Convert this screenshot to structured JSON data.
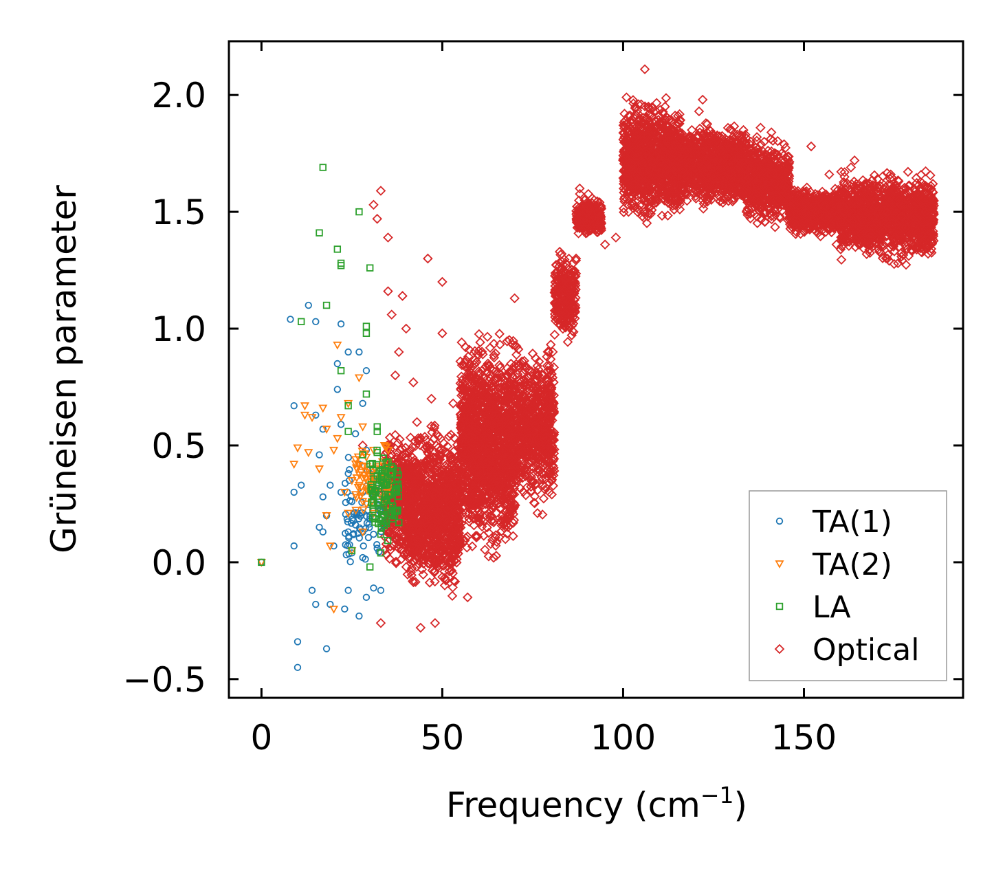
{
  "chart_data": {
    "type": "scatter",
    "title": "",
    "xlabel": "Frequency (cm",
    "xlabel_sup": "−1",
    "xlabel_close": ")",
    "ylabel": "Grüneisen parameter",
    "xlim": [
      -9,
      194
    ],
    "ylim": [
      -0.58,
      2.23
    ],
    "xticks": [
      0,
      50,
      100,
      150
    ],
    "xtick_labels": [
      "0",
      "50",
      "100",
      "150"
    ],
    "yticks": [
      -0.5,
      0.0,
      0.5,
      1.0,
      1.5,
      2.0
    ],
    "ytick_labels": [
      "−0.5",
      "0.0",
      "0.5",
      "1.0",
      "1.5",
      "2.0"
    ],
    "legend_position": "lower-right",
    "series": [
      {
        "name": "TA(1)",
        "marker": "circle",
        "color": "#1f77b4",
        "points": [
          [
            0,
            0
          ],
          [
            8,
            1.04
          ],
          [
            9,
            0.67
          ],
          [
            9,
            0.3
          ],
          [
            9,
            0.07
          ],
          [
            10,
            -0.34
          ],
          [
            10,
            -0.45
          ],
          [
            11,
            0.33
          ],
          [
            13,
            1.1
          ],
          [
            14,
            -0.12
          ],
          [
            15,
            1.03
          ],
          [
            15,
            0.63
          ],
          [
            15,
            -0.18
          ],
          [
            16,
            0.46
          ],
          [
            16,
            0.15
          ],
          [
            17,
            0.57
          ],
          [
            17,
            0.28
          ],
          [
            17,
            0.13
          ],
          [
            18,
            0.2
          ],
          [
            18,
            -0.37
          ],
          [
            19,
            0.33
          ],
          [
            19,
            -0.18
          ],
          [
            20,
            0.07
          ],
          [
            21,
            0.85
          ],
          [
            21,
            0.74
          ],
          [
            22,
            1.02
          ],
          [
            22,
            0.59
          ],
          [
            22,
            0.3
          ],
          [
            23,
            -0.2
          ],
          [
            24,
            0.9
          ],
          [
            24,
            0.38
          ],
          [
            24,
            0.13
          ],
          [
            24,
            -0.12
          ],
          [
            25,
            0.26
          ],
          [
            25,
            0.04
          ],
          [
            26,
            0.55
          ],
          [
            26,
            0.16
          ],
          [
            27,
            0.9
          ],
          [
            27,
            0.42
          ],
          [
            27,
            -0.23
          ],
          [
            28,
            0.68
          ],
          [
            28,
            0.3
          ],
          [
            28,
            0.02
          ],
          [
            29,
            0.82
          ],
          [
            29,
            0.48
          ],
          [
            29,
            -0.15
          ],
          [
            30,
            0.2
          ],
          [
            30,
            0.38
          ],
          [
            31,
            0.12
          ],
          [
            31,
            -0.11
          ],
          [
            32,
            0.06
          ],
          [
            32,
            0.25
          ],
          [
            33,
            -0.12
          ],
          [
            33,
            0.18
          ]
        ]
      },
      {
        "name": "TA(2)",
        "marker": "triangle-down",
        "color": "#ff7f0e",
        "points": [
          [
            0,
            0
          ],
          [
            9,
            0.42
          ],
          [
            10,
            0.49
          ],
          [
            12,
            0.67
          ],
          [
            12,
            0.63
          ],
          [
            13,
            0.47
          ],
          [
            14,
            0.62
          ],
          [
            16,
            0.4
          ],
          [
            17,
            0.66
          ],
          [
            18,
            0.57
          ],
          [
            18,
            0.2
          ],
          [
            19,
            0.07
          ],
          [
            20,
            0.48
          ],
          [
            20,
            -0.2
          ],
          [
            21,
            0.93
          ],
          [
            21,
            0.53
          ],
          [
            22,
            0.62
          ],
          [
            23,
            0.3
          ],
          [
            24,
            0.68
          ],
          [
            24,
            0.21
          ],
          [
            25,
            0.35
          ],
          [
            25,
            0.05
          ],
          [
            26,
            0.44
          ],
          [
            27,
            0.79
          ],
          [
            27,
            0.33
          ],
          [
            28,
            0.58
          ],
          [
            28,
            0.13
          ],
          [
            29,
            0.45
          ],
          [
            29,
            0.25
          ],
          [
            30,
            0.37
          ],
          [
            31,
            0.48
          ],
          [
            31,
            0.21
          ],
          [
            32,
            0.41
          ],
          [
            33,
            0.28
          ],
          [
            33,
            0.36
          ],
          [
            34,
            0.5
          ],
          [
            35,
            0.24
          ]
        ]
      },
      {
        "name": "LA",
        "marker": "square",
        "color": "#2ca02c",
        "points": [
          [
            0,
            0
          ],
          [
            11,
            1.03
          ],
          [
            16,
            1.41
          ],
          [
            17,
            1.69
          ],
          [
            18,
            1.1
          ],
          [
            21,
            1.34
          ],
          [
            22,
            1.28
          ],
          [
            22,
            1.27
          ],
          [
            22,
            0.82
          ],
          [
            24,
            0.67
          ],
          [
            24,
            0.56
          ],
          [
            25,
            0.05
          ],
          [
            27,
            1.5
          ],
          [
            28,
            0.46
          ],
          [
            29,
            1.01
          ],
          [
            29,
            0.72
          ],
          [
            29,
            0.98
          ],
          [
            30,
            1.26
          ],
          [
            30,
            0.42
          ],
          [
            30,
            -0.02
          ],
          [
            31,
            0.29
          ],
          [
            32,
            0.56
          ],
          [
            32,
            0.58
          ],
          [
            32,
            0.47
          ],
          [
            33,
            0.12
          ],
          [
            33,
            0.39
          ],
          [
            33,
            0.04
          ],
          [
            34,
            0.33
          ],
          [
            34,
            0.26
          ],
          [
            35,
            0.43
          ],
          [
            35,
            0.36
          ],
          [
            35,
            0.29
          ],
          [
            36,
            0.41
          ],
          [
            36,
            0.35
          ],
          [
            37,
            0.33
          ],
          [
            38,
            0.17
          ]
        ]
      },
      {
        "name": "Optical",
        "marker": "diamond",
        "color": "#d62728",
        "points": [
          [
            28,
            0.5
          ],
          [
            31,
            1.53
          ],
          [
            32,
            1.47
          ],
          [
            33,
            1.59
          ],
          [
            33,
            -0.26
          ],
          [
            35,
            1.39
          ],
          [
            35,
            1.16
          ],
          [
            36,
            1.06
          ],
          [
            37,
            0.8
          ],
          [
            38,
            0.9
          ],
          [
            39,
            1.14
          ],
          [
            40,
            1.0
          ],
          [
            42,
            0.77
          ],
          [
            43,
            0.6
          ],
          [
            44,
            -0.28
          ],
          [
            46,
            1.3
          ],
          [
            47,
            0.7
          ],
          [
            48,
            -0.26
          ],
          [
            50,
            1.2
          ],
          [
            50,
            0.98
          ],
          [
            51,
            0.05
          ],
          [
            53,
            0.68
          ],
          [
            55,
            0.86
          ],
          [
            56,
            0.74
          ],
          [
            57,
            -0.15
          ],
          [
            58,
            0.81
          ],
          [
            60,
            0.64
          ],
          [
            61,
            0.34
          ],
          [
            63,
            0.57
          ],
          [
            65,
            0.48
          ],
          [
            66,
            0.62
          ],
          [
            67,
            0.44
          ],
          [
            68,
            0.72
          ],
          [
            69,
            0.85
          ],
          [
            70,
            1.13
          ],
          [
            71,
            0.55
          ],
          [
            72,
            0.61
          ],
          [
            73,
            0.4
          ],
          [
            75,
            0.34
          ],
          [
            76,
            0.62
          ],
          [
            77,
            0.7
          ],
          [
            78,
            0.68
          ],
          [
            80,
            0.74
          ],
          [
            82,
            1.05
          ],
          [
            83,
            1.32
          ],
          [
            84,
            1.16
          ],
          [
            85,
            1.22
          ],
          [
            86,
            0.99
          ],
          [
            87,
            1.3
          ],
          [
            88,
            1.6
          ],
          [
            89,
            1.48
          ],
          [
            90,
            1.52
          ],
          [
            91,
            1.42
          ],
          [
            92,
            1.55
          ],
          [
            93,
            1.5
          ],
          [
            95,
            1.36
          ],
          [
            98,
            1.39
          ],
          [
            100,
            1.72
          ],
          [
            101,
            1.79
          ],
          [
            102,
            1.75
          ],
          [
            103,
            1.67
          ],
          [
            104,
            1.83
          ],
          [
            105,
            1.96
          ],
          [
            106,
            2.11
          ],
          [
            107,
            1.95
          ],
          [
            108,
            1.82
          ],
          [
            109,
            1.74
          ],
          [
            110,
            1.91
          ],
          [
            111,
            1.86
          ],
          [
            112,
            1.68
          ],
          [
            113,
            1.57
          ],
          [
            115,
            1.59
          ],
          [
            117,
            1.71
          ],
          [
            118,
            1.78
          ],
          [
            119,
            1.85
          ],
          [
            121,
            1.93
          ],
          [
            122,
            1.98
          ],
          [
            124,
            1.74
          ],
          [
            125,
            1.64
          ],
          [
            127,
            1.76
          ],
          [
            129,
            1.73
          ],
          [
            130,
            1.85
          ],
          [
            131,
            1.67
          ],
          [
            133,
            1.57
          ],
          [
            135,
            1.79
          ],
          [
            137,
            1.82
          ],
          [
            138,
            1.86
          ],
          [
            140,
            1.71
          ],
          [
            141,
            1.84
          ],
          [
            142,
            1.62
          ],
          [
            144,
            1.53
          ],
          [
            146,
            1.5
          ],
          [
            148,
            1.49
          ],
          [
            150,
            1.44
          ],
          [
            152,
            1.78
          ],
          [
            153,
            1.53
          ],
          [
            155,
            1.42
          ],
          [
            157,
            1.66
          ],
          [
            159,
            1.36
          ],
          [
            161,
            1.5
          ],
          [
            163,
            1.69
          ],
          [
            164,
            1.72
          ],
          [
            166,
            1.58
          ],
          [
            168,
            1.47
          ],
          [
            170,
            1.53
          ],
          [
            172,
            1.6
          ],
          [
            174,
            1.66
          ],
          [
            175,
            1.37
          ],
          [
            176,
            1.28
          ],
          [
            177,
            1.48
          ],
          [
            179,
            1.61
          ],
          [
            181,
            1.42
          ],
          [
            183,
            1.55
          ],
          [
            184,
            1.49
          ],
          [
            185,
            1.33
          ]
        ]
      }
    ],
    "dense_regions": [
      {
        "series": "Optical",
        "x": [
          34,
          40
        ],
        "y_center": 0.28,
        "y_spread": 0.33,
        "count": 320
      },
      {
        "series": "Optical",
        "x": [
          40,
          55
        ],
        "y_center": 0.22,
        "y_spread": 0.42,
        "count": 1100
      },
      {
        "series": "Optical",
        "x": [
          55,
          70
        ],
        "y_center": 0.5,
        "y_spread": 0.55,
        "count": 1400
      },
      {
        "series": "Optical",
        "x": [
          70,
          81
        ],
        "y_center": 0.58,
        "y_spread": 0.4,
        "count": 700
      },
      {
        "series": "Optical",
        "x": [
          81,
          87
        ],
        "y_center": 1.15,
        "y_spread": 0.25,
        "count": 260
      },
      {
        "series": "Optical",
        "x": [
          87,
          94
        ],
        "y_center": 1.48,
        "y_spread": 0.1,
        "count": 260
      },
      {
        "series": "Optical",
        "x": [
          100,
          116
        ],
        "y_center": 1.72,
        "y_spread": 0.3,
        "count": 1100
      },
      {
        "series": "Optical",
        "x": [
          116,
          134
        ],
        "y_center": 1.7,
        "y_spread": 0.2,
        "count": 1000
      },
      {
        "series": "Optical",
        "x": [
          134,
          146
        ],
        "y_center": 1.63,
        "y_spread": 0.22,
        "count": 600
      },
      {
        "series": "Optical",
        "x": [
          146,
          160
        ],
        "y_center": 1.5,
        "y_spread": 0.12,
        "count": 600
      },
      {
        "series": "Optical",
        "x": [
          160,
          186
        ],
        "y_center": 1.48,
        "y_spread": 0.22,
        "count": 1300
      },
      {
        "series": "TA(1)",
        "x": [
          23,
          34
        ],
        "y_center": 0.2,
        "y_spread": 0.3,
        "count": 70
      },
      {
        "series": "TA(2)",
        "x": [
          26,
          36
        ],
        "y_center": 0.35,
        "y_spread": 0.18,
        "count": 70
      },
      {
        "series": "LA",
        "x": [
          30,
          38
        ],
        "y_center": 0.3,
        "y_spread": 0.25,
        "count": 90
      }
    ]
  }
}
